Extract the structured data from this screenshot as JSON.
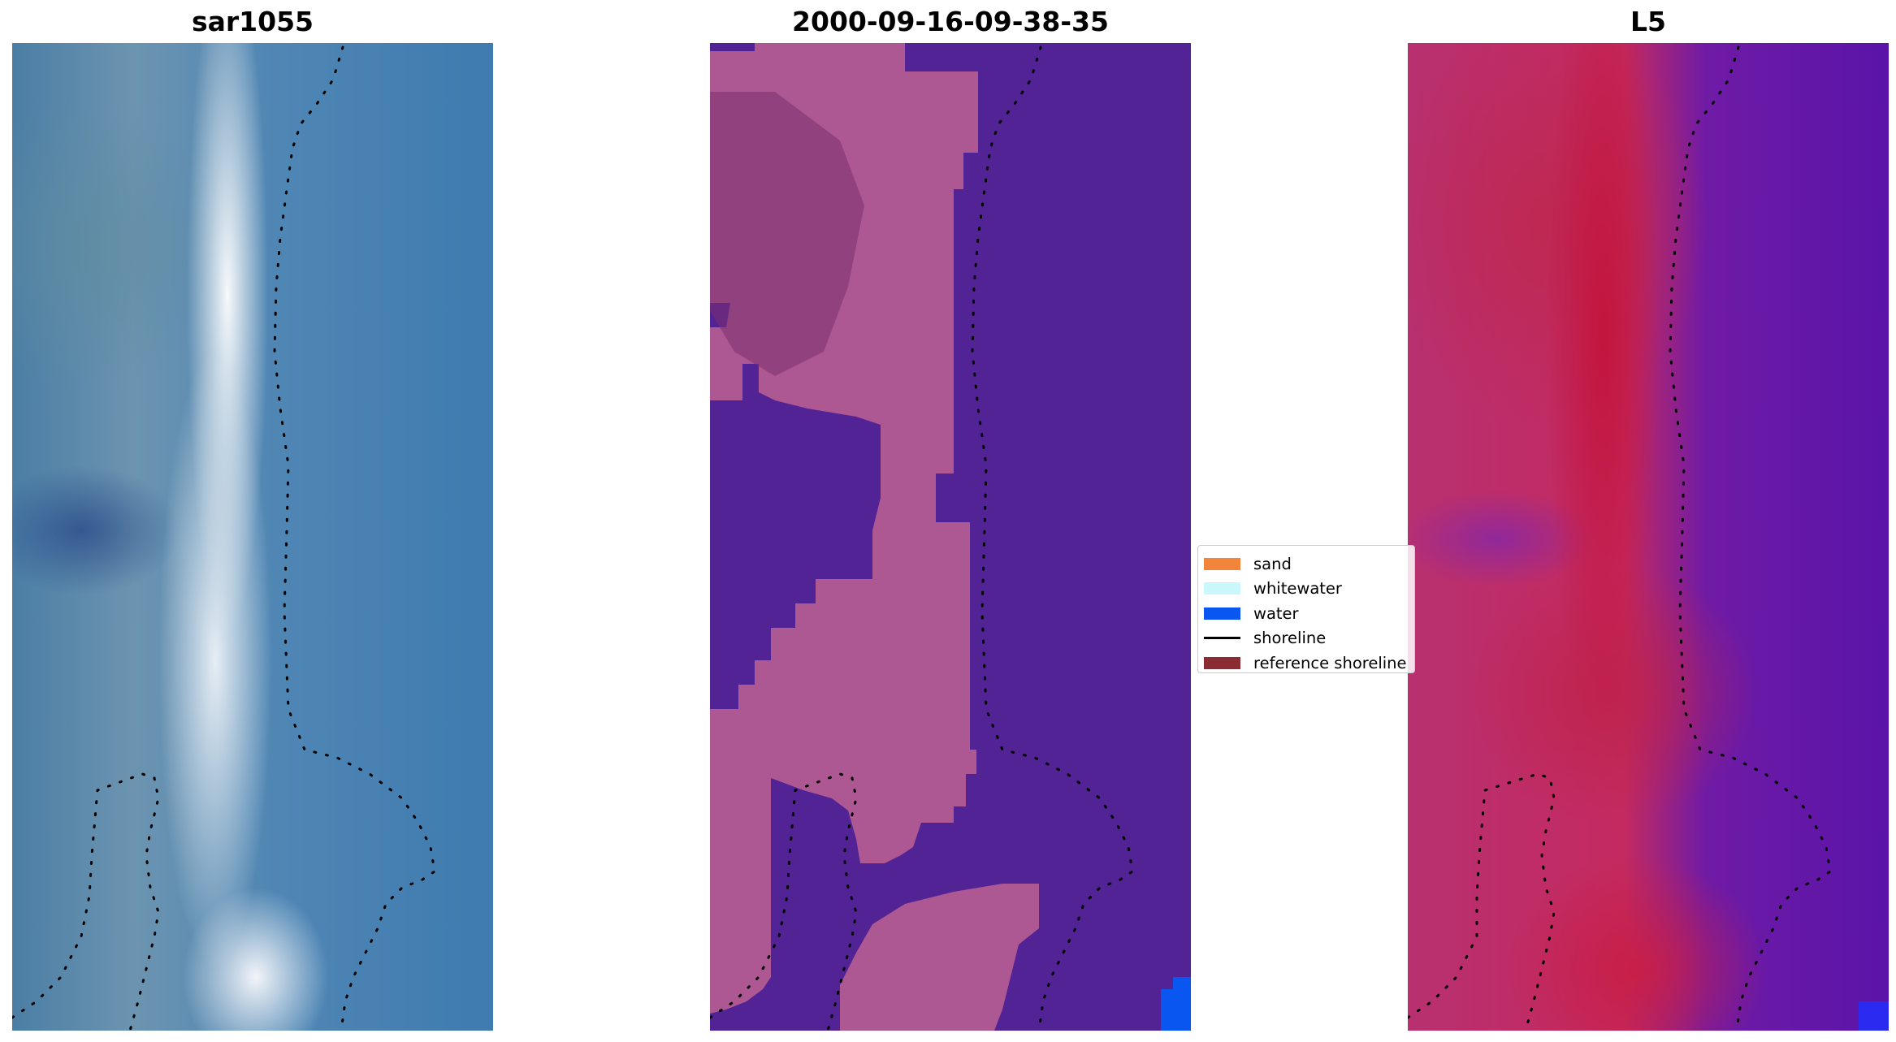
{
  "panels": [
    {
      "title": "sar1055"
    },
    {
      "title": "2000-09-16-09-38-35"
    },
    {
      "title": "L5"
    }
  ],
  "legend": {
    "entries": [
      {
        "label": "sand",
        "color": "#f2853a",
        "kind": "patch"
      },
      {
        "label": "whitewater",
        "color": "#c9f7fb",
        "kind": "patch"
      },
      {
        "label": "water",
        "color": "#0a56f0",
        "kind": "patch"
      },
      {
        "label": "shoreline",
        "color": "#000000",
        "kind": "line"
      },
      {
        "label": "reference shoreline",
        "color": "#8b2b33",
        "kind": "patch"
      }
    ]
  },
  "colors": {
    "background": "#ffffff",
    "classified_water": "#522394",
    "classified_land": "#b65d93",
    "shoreline_dots": "#000000"
  }
}
